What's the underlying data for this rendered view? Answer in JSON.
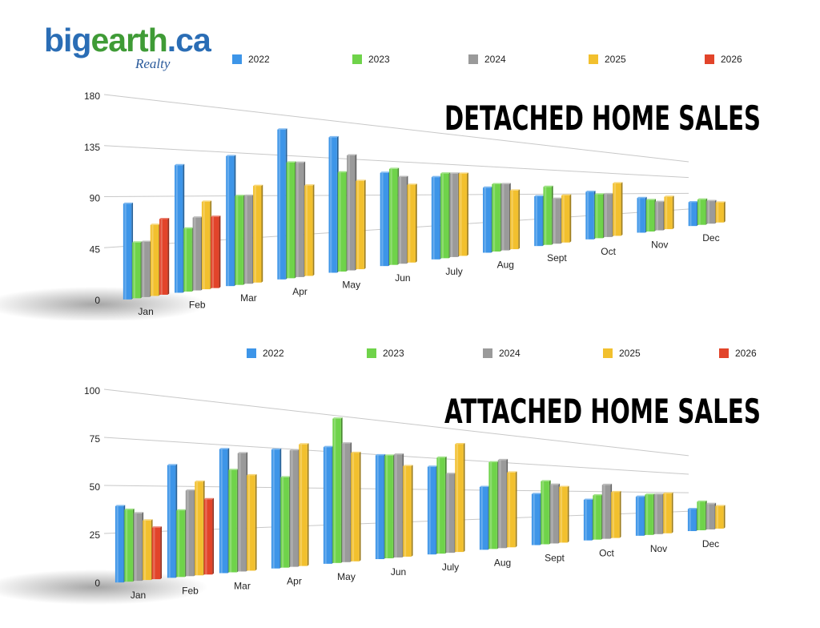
{
  "logo": {
    "text_blue_1": "big",
    "text_green": "earth",
    "text_blue_2": ".ca",
    "sub": "Realty"
  },
  "colors": {
    "2022": "#3d95e8",
    "2023": "#6fd34a",
    "2024": "#9a9a9a",
    "2025": "#f2c02e",
    "2026": "#e2442a"
  },
  "chart_data": [
    {
      "type": "bar",
      "title": "DETACHED HOME SALES",
      "categories": [
        "Jan",
        "Feb",
        "Mar",
        "Apr",
        "May",
        "Jun",
        "July",
        "Aug",
        "Sept",
        "Oct",
        "Nov",
        "Dec"
      ],
      "ylim": [
        0,
        180
      ],
      "yticks": [
        "0",
        "45",
        "90",
        "135",
        "180"
      ],
      "grid": true,
      "legend_position": "top",
      "series": [
        {
          "name": "2022",
          "values": [
            85,
            120,
            130,
            160,
            155,
            115,
            110,
            95,
            80,
            85,
            70,
            55
          ]
        },
        {
          "name": "2023",
          "values": [
            50,
            60,
            90,
            125,
            115,
            120,
            115,
            100,
            95,
            80,
            65,
            60
          ]
        },
        {
          "name": "2024",
          "values": [
            50,
            70,
            90,
            125,
            135,
            110,
            115,
            100,
            75,
            80,
            60,
            55
          ]
        },
        {
          "name": "2025",
          "values": [
            65,
            85,
            100,
            100,
            105,
            100,
            115,
            90,
            80,
            100,
            70,
            50
          ]
        },
        {
          "name": "2026",
          "values": [
            70,
            70,
            null,
            null,
            null,
            null,
            null,
            null,
            null,
            null,
            null,
            null
          ]
        }
      ]
    },
    {
      "type": "bar",
      "title": "ATTACHED HOME SALES",
      "categories": [
        "Jan",
        "Feb",
        "Mar",
        "Apr",
        "May",
        "Jun",
        "July",
        "Aug",
        "Sept",
        "Oct",
        "Nov",
        "Dec"
      ],
      "ylim": [
        0,
        100
      ],
      "yticks": [
        "0",
        "25",
        "50",
        "75",
        "100"
      ],
      "grid": true,
      "legend_position": "top",
      "series": [
        {
          "name": "2022",
          "values": [
            40,
            62,
            72,
            73,
            76,
            72,
            65,
            50,
            44,
            38,
            40,
            25
          ]
        },
        {
          "name": "2023",
          "values": [
            38,
            37,
            60,
            56,
            95,
            72,
            72,
            70,
            55,
            42,
            42,
            33
          ]
        },
        {
          "name": "2024",
          "values": [
            36,
            48,
            70,
            73,
            79,
            73,
            60,
            72,
            52,
            52,
            42,
            30
          ]
        },
        {
          "name": "2025",
          "values": [
            32,
            53,
            57,
            77,
            73,
            65,
            83,
            62,
            50,
            45,
            43,
            27
          ]
        },
        {
          "name": "2026",
          "values": [
            28,
            43,
            null,
            null,
            null,
            null,
            null,
            null,
            null,
            null,
            null,
            null
          ]
        }
      ]
    }
  ]
}
